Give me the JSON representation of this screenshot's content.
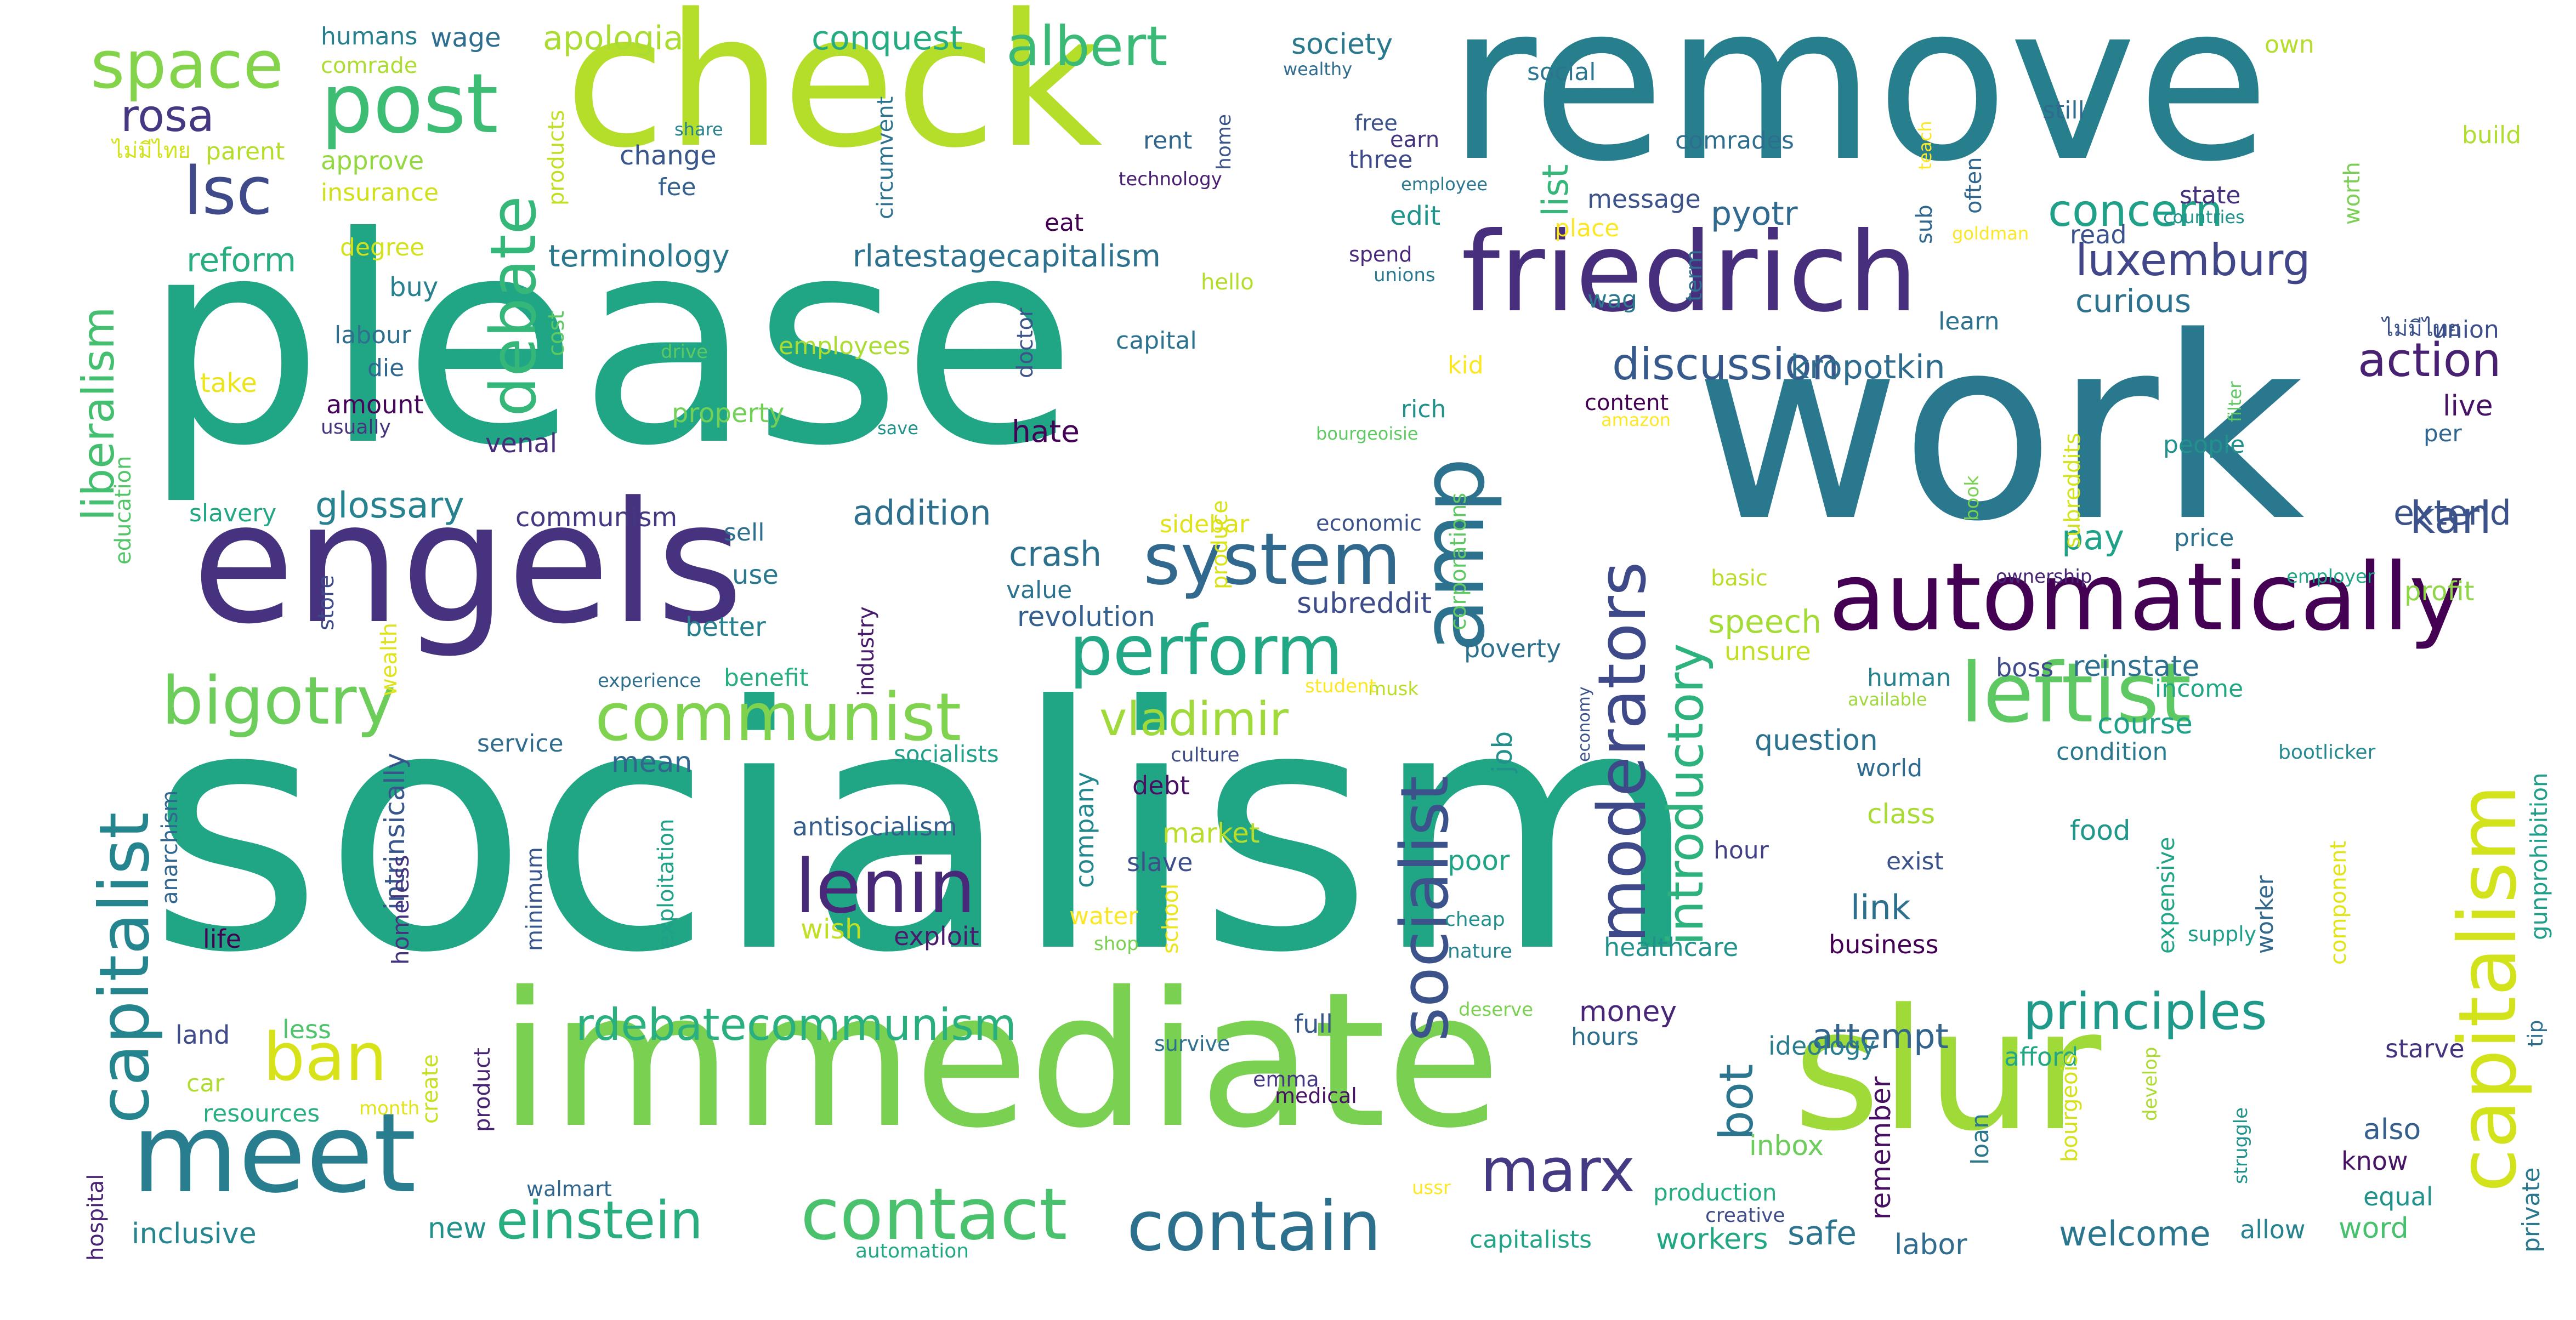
{
  "cloud": {
    "palette": {
      "purple": "#440154",
      "indigo": "#46337e",
      "slate": "#365c8d",
      "teal": "#277f8e",
      "green": "#1fa187",
      "leaf": "#4ac16d",
      "lime": "#a0da39",
      "yellow": "#fde725"
    },
    "words": [
      {
        "text": "socialism",
        "color": "#21a685"
      },
      {
        "text": "please",
        "color": "#21a685"
      },
      {
        "text": "remove",
        "color": "#277f8e"
      },
      {
        "text": "work",
        "color": "#2a788e"
      },
      {
        "text": "check",
        "color": "#b5de2b"
      },
      {
        "text": "immediate",
        "color": "#7ad151"
      },
      {
        "text": "slur",
        "color": "#a0da39"
      },
      {
        "text": "engels",
        "color": "#46327e"
      },
      {
        "text": "friedrich",
        "color": "#472f7d"
      },
      {
        "text": "automatically",
        "color": "#440154"
      },
      {
        "text": "amp",
        "color": "#2c728e"
      },
      {
        "text": "meet",
        "color": "#287d8e"
      },
      {
        "text": "post",
        "color": "#3dbc74"
      },
      {
        "text": "system",
        "color": "#31688e"
      },
      {
        "text": "contact",
        "color": "#4ac16d"
      },
      {
        "text": "contain",
        "color": "#2d708e"
      },
      {
        "text": "leftist",
        "color": "#5ec962"
      },
      {
        "text": "capitalism",
        "color": "#d2e21b"
      },
      {
        "text": "socialist",
        "color": "#3b528b"
      },
      {
        "text": "lenin",
        "color": "#482878"
      },
      {
        "text": "communist",
        "color": "#7fd34e"
      },
      {
        "text": "perform",
        "color": "#22a884"
      },
      {
        "text": "space",
        "color": "#84d44b"
      },
      {
        "text": "capitalist",
        "color": "#25858e"
      },
      {
        "text": "moderators",
        "color": "#3e4989"
      },
      {
        "text": "marx",
        "color": "#443983"
      },
      {
        "text": "debate",
        "color": "#35b779"
      },
      {
        "text": "bigotry",
        "color": "#6ccd5a"
      },
      {
        "text": "ban",
        "color": "#d8e219"
      },
      {
        "text": "einstein",
        "color": "#29af7f"
      },
      {
        "text": "introductory",
        "color": "#2db27d"
      },
      {
        "text": "principles",
        "color": "#1f9a8a"
      },
      {
        "text": "rdebatecommunism",
        "color": "#2ab07f"
      },
      {
        "text": "albert",
        "color": "#3aba76"
      },
      {
        "text": "vladimir",
        "color": "#9fda3a"
      },
      {
        "text": "lsc",
        "color": "#3e4a89"
      },
      {
        "text": "rosa",
        "color": "#453781"
      },
      {
        "text": "liberalism",
        "color": "#44bf70"
      },
      {
        "text": "luxemburg",
        "color": "#404688"
      },
      {
        "text": "concern",
        "color": "#1fa088"
      },
      {
        "text": "discussion",
        "color": "#375a8c"
      },
      {
        "text": "action",
        "color": "#482173"
      },
      {
        "text": "karl",
        "color": "#3b528b"
      },
      {
        "text": "bot",
        "color": "#2b758e"
      },
      {
        "text": "rlatestagecapitalism",
        "color": "#2c728e"
      },
      {
        "text": "terminology",
        "color": "#2a788e"
      },
      {
        "text": "glossary",
        "color": "#26828e"
      },
      {
        "text": "kropotkin",
        "color": "#2f6c8e"
      },
      {
        "text": "pyotr",
        "color": "#306a8e"
      },
      {
        "text": "list",
        "color": "#35b779"
      },
      {
        "text": "apologia",
        "color": "#aadc32"
      },
      {
        "text": "conquest",
        "color": "#25ab82"
      },
      {
        "text": "reform",
        "color": "#29af7f"
      },
      {
        "text": "addition",
        "color": "#2e6f8e"
      },
      {
        "text": "crash",
        "color": "#2d708e"
      },
      {
        "text": "extend",
        "color": "#3b528b"
      },
      {
        "text": "pay",
        "color": "#1fa287"
      },
      {
        "text": "curious",
        "color": "#2c728e"
      },
      {
        "text": "attempt",
        "color": "#32648e"
      },
      {
        "text": "speech",
        "color": "#a5db36"
      },
      {
        "text": "welcome",
        "color": "#2a768e"
      },
      {
        "text": "link",
        "color": "#2d708e"
      },
      {
        "text": "society",
        "color": "#2a788e"
      },
      {
        "text": "mean",
        "color": "#31668e"
      },
      {
        "text": "subreddit",
        "color": "#3e4c8a"
      },
      {
        "text": "revolution",
        "color": "#35608d"
      },
      {
        "text": "hate",
        "color": "#440256"
      },
      {
        "text": "communism",
        "color": "#453882"
      },
      {
        "text": "reinstate",
        "color": "#2e6e8e"
      },
      {
        "text": "course",
        "color": "#1fa088"
      },
      {
        "text": "question",
        "color": "#2c718e"
      },
      {
        "text": "safe",
        "color": "#2c738e"
      },
      {
        "text": "labor",
        "color": "#2f6c8e"
      },
      {
        "text": "workers",
        "color": "#22a785"
      },
      {
        "text": "money",
        "color": "#482576"
      },
      {
        "text": "inclusive",
        "color": "#25858e"
      },
      {
        "text": "new",
        "color": "#21918c"
      },
      {
        "text": "word",
        "color": "#48c16e"
      },
      {
        "text": "also",
        "color": "#355f8d"
      },
      {
        "text": "remember",
        "color": "#471063"
      },
      {
        "text": "inbox",
        "color": "#6ccd5a"
      },
      {
        "text": "profit",
        "color": "#8ed645"
      },
      {
        "text": "live",
        "color": "#471365"
      },
      {
        "text": "change",
        "color": "#39568c"
      },
      {
        "text": "edit",
        "color": "#1f948c"
      },
      {
        "text": "message",
        "color": "#3b528b"
      },
      {
        "text": "approve",
        "color": "#93d741"
      },
      {
        "text": "food",
        "color": "#1f988b"
      },
      {
        "text": "class",
        "color": "#a8db34"
      },
      {
        "text": "wish",
        "color": "#c0df25"
      },
      {
        "text": "exploit",
        "color": "#481b6d"
      },
      {
        "text": "market",
        "color": "#b8de29"
      },
      {
        "text": "company",
        "color": "#23888e"
      },
      {
        "text": "job",
        "color": "#21918c"
      },
      {
        "text": "poor",
        "color": "#20a486"
      },
      {
        "text": "unsure",
        "color": "#c2df23"
      },
      {
        "text": "poverty",
        "color": "#2d708e"
      },
      {
        "text": "intrinsically",
        "color": "#39568c"
      },
      {
        "text": "antisocialism",
        "color": "#355e8d"
      },
      {
        "text": "debt",
        "color": "#471164"
      },
      {
        "text": "slave",
        "color": "#3c4f8a"
      },
      {
        "text": "business",
        "color": "#440154"
      },
      {
        "text": "healthcare",
        "color": "#21918c"
      },
      {
        "text": "ideology",
        "color": "#287d8e"
      },
      {
        "text": "hours",
        "color": "#2e6e8e"
      },
      {
        "text": "hour",
        "color": "#424086"
      },
      {
        "text": "exist",
        "color": "#3b528b"
      },
      {
        "text": "starve",
        "color": "#46337e"
      },
      {
        "text": "afford",
        "color": "#22a785"
      },
      {
        "text": "know",
        "color": "#471365"
      },
      {
        "text": "equal",
        "color": "#21918c"
      },
      {
        "text": "allow",
        "color": "#26828e"
      },
      {
        "text": "production",
        "color": "#25ac82"
      },
      {
        "text": "capitalists",
        "color": "#20a486"
      },
      {
        "text": "wage",
        "color": "#2e6e8e"
      },
      {
        "text": "humans",
        "color": "#277f8e"
      },
      {
        "text": "comrade",
        "color": "#addc30"
      },
      {
        "text": "parent",
        "color": "#b5de2b"
      },
      {
        "text": "insurance",
        "color": "#d0e11c"
      },
      {
        "text": "degree",
        "color": "#d2e21b"
      },
      {
        "text": "buy",
        "color": "#27808e"
      },
      {
        "text": "labour",
        "color": "#2e6f8e"
      },
      {
        "text": "die",
        "color": "#31678e"
      },
      {
        "text": "take",
        "color": "#ede51b"
      },
      {
        "text": "amount",
        "color": "#46075a"
      },
      {
        "text": "usually",
        "color": "#46337e"
      },
      {
        "text": "education",
        "color": "#52c569"
      },
      {
        "text": "slavery",
        "color": "#22a785"
      },
      {
        "text": "employees",
        "color": "#aadc32"
      },
      {
        "text": "property",
        "color": "#73d056"
      },
      {
        "text": "venal",
        "color": "#472c7a"
      },
      {
        "text": "sell",
        "color": "#2e6f8e"
      },
      {
        "text": "use",
        "color": "#2a788e"
      },
      {
        "text": "better",
        "color": "#27808e"
      },
      {
        "text": "benefit",
        "color": "#29af7f"
      },
      {
        "text": "service",
        "color": "#2f6c8e"
      },
      {
        "text": "socialists",
        "color": "#1fa088"
      },
      {
        "text": "culture",
        "color": "#3d4e8a"
      },
      {
        "text": "anarchism",
        "color": "#31668e"
      },
      {
        "text": "homeless",
        "color": "#45337d"
      },
      {
        "text": "life",
        "color": "#440154"
      },
      {
        "text": "land",
        "color": "#3e4a89"
      },
      {
        "text": "less",
        "color": "#4ec36b"
      },
      {
        "text": "car",
        "color": "#b0dd2f"
      },
      {
        "text": "resources",
        "color": "#29af7f"
      },
      {
        "text": "month",
        "color": "#e2e418"
      },
      {
        "text": "create",
        "color": "#c8e020"
      },
      {
        "text": "product",
        "color": "#482374"
      },
      {
        "text": "hospital",
        "color": "#482374"
      },
      {
        "text": "walmart",
        "color": "#31668e"
      },
      {
        "text": "automation",
        "color": "#22a785"
      },
      {
        "text": "minimum",
        "color": "#39568c"
      },
      {
        "text": "exploitation",
        "color": "#1fa088"
      },
      {
        "text": "survive",
        "color": "#2e6e8e"
      },
      {
        "text": "emma",
        "color": "#453781"
      },
      {
        "text": "medical",
        "color": "#471164"
      },
      {
        "text": "full",
        "color": "#38598c"
      },
      {
        "text": "school",
        "color": "#ede51b"
      },
      {
        "text": "water",
        "color": "#fde725"
      },
      {
        "text": "shop",
        "color": "#7ad151"
      },
      {
        "text": "cheap",
        "color": "#21908d"
      },
      {
        "text": "nature",
        "color": "#25848e"
      },
      {
        "text": "deserve",
        "color": "#7ad151"
      },
      {
        "text": "ussr",
        "color": "#fde725"
      },
      {
        "text": "creative",
        "color": "#3e4c8a"
      },
      {
        "text": "supply",
        "color": "#1f9e89"
      },
      {
        "text": "bootlicker",
        "color": "#23898e"
      },
      {
        "text": "condition",
        "color": "#2a788e"
      },
      {
        "text": "world",
        "color": "#2f6b8e"
      },
      {
        "text": "human",
        "color": "#26828e"
      },
      {
        "text": "boss",
        "color": "#3e4a89"
      },
      {
        "text": "income",
        "color": "#22a785"
      },
      {
        "text": "available",
        "color": "#9fda3a"
      },
      {
        "text": "economy",
        "color": "#3b528b"
      },
      {
        "text": "musk",
        "color": "#b8de29"
      },
      {
        "text": "student",
        "color": "#fde725"
      },
      {
        "text": "experience",
        "color": "#2e6f8e"
      },
      {
        "text": "industry",
        "color": "#481b6d"
      },
      {
        "text": "store",
        "color": "#3e4989"
      },
      {
        "text": "wealth",
        "color": "#dfe318"
      },
      {
        "text": "value",
        "color": "#2c728e"
      },
      {
        "text": "produce",
        "color": "#d8e219"
      },
      {
        "text": "sidebar",
        "color": "#dfe318"
      },
      {
        "text": "economic",
        "color": "#3b528b"
      },
      {
        "text": "corporations",
        "color": "#5ec962"
      },
      {
        "text": "basic",
        "color": "#b8de29"
      },
      {
        "text": "ownership",
        "color": "#482475"
      },
      {
        "text": "employer",
        "color": "#20a386"
      },
      {
        "text": "price",
        "color": "#2c728e"
      },
      {
        "text": "people",
        "color": "#21918c"
      },
      {
        "text": "per",
        "color": "#31678e"
      },
      {
        "text": "subreddits",
        "color": "#d2e21b"
      },
      {
        "text": "book",
        "color": "#7ad151"
      },
      {
        "text": "filter",
        "color": "#5ec962"
      },
      {
        "text": "gunprohibition",
        "color": "#1f9e89"
      },
      {
        "text": "tip",
        "color": "#2e6e8e"
      },
      {
        "text": "private",
        "color": "#2a788e"
      },
      {
        "text": "struggle",
        "color": "#21918c"
      },
      {
        "text": "develop",
        "color": "#addc30"
      },
      {
        "text": "bourgeois",
        "color": "#d5e21a"
      },
      {
        "text": "loan",
        "color": "#2a788e"
      },
      {
        "text": "component",
        "color": "#e2e418"
      },
      {
        "text": "worker",
        "color": "#31688e"
      },
      {
        "text": "expensive",
        "color": "#20a486"
      },
      {
        "text": "learn",
        "color": "#2c718e"
      },
      {
        "text": "union",
        "color": "#3d4e8a"
      },
      {
        "text": "ไม่มีไทย",
        "color": "#3b528b"
      },
      {
        "text": "ไม่มีไทย",
        "color": "#d2e21b"
      },
      {
        "text": "goldman",
        "color": "#fde725"
      },
      {
        "text": "read",
        "color": "#3b528b"
      },
      {
        "text": "countries",
        "color": "#21918c"
      },
      {
        "text": "state",
        "color": "#46327e"
      },
      {
        "text": "often",
        "color": "#31678e"
      },
      {
        "text": "sub",
        "color": "#31678e"
      },
      {
        "text": "teach",
        "color": "#fde725"
      },
      {
        "text": "still",
        "color": "#2f6b8e"
      },
      {
        "text": "own",
        "color": "#b5de2b"
      },
      {
        "text": "build",
        "color": "#b0dd2f"
      },
      {
        "text": "worth",
        "color": "#7ad151"
      },
      {
        "text": "comrades",
        "color": "#2e6e8e"
      },
      {
        "text": "social",
        "color": "#2b758e"
      },
      {
        "text": "wealthy",
        "color": "#2f6c8e"
      },
      {
        "text": "free",
        "color": "#3b528b"
      },
      {
        "text": "earn",
        "color": "#46337e"
      },
      {
        "text": "three",
        "color": "#3e4a89"
      },
      {
        "text": "employee",
        "color": "#2a788e"
      },
      {
        "text": "technology",
        "color": "#481f70"
      },
      {
        "text": "rent",
        "color": "#31678e"
      },
      {
        "text": "home",
        "color": "#3b528b"
      },
      {
        "text": "share",
        "color": "#25838e"
      },
      {
        "text": "products",
        "color": "#c2df23"
      },
      {
        "text": "fee",
        "color": "#355f8d"
      },
      {
        "text": "circumvent",
        "color": "#2c728e"
      },
      {
        "text": "eat",
        "color": "#440154"
      },
      {
        "text": "spend",
        "color": "#482878"
      },
      {
        "text": "unions",
        "color": "#2a788e"
      },
      {
        "text": "hello",
        "color": "#b5de2b"
      },
      {
        "text": "cost",
        "color": "#5ec962"
      },
      {
        "text": "capital",
        "color": "#2c718e"
      },
      {
        "text": "drive",
        "color": "#5ec962"
      },
      {
        "text": "doctor",
        "color": "#3b528b"
      },
      {
        "text": "kid",
        "color": "#fde725"
      },
      {
        "text": "rich",
        "color": "#21918c"
      },
      {
        "text": "bourgeoisie",
        "color": "#5ec962"
      },
      {
        "text": "save",
        "color": "#21918c"
      },
      {
        "text": "content",
        "color": "#440154"
      },
      {
        "text": "amazon",
        "color": "#fde725"
      },
      {
        "text": "term",
        "color": "#2e6e8e"
      },
      {
        "text": "place",
        "color": "#fde725"
      },
      {
        "text": "wag",
        "color": "#2a788e"
      }
    ]
  }
}
